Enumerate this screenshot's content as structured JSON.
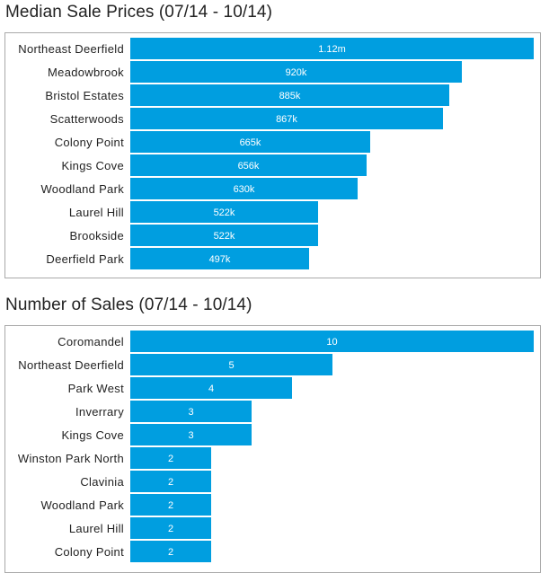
{
  "charts": [
    {
      "title": "Median Sale Prices (07/14 - 10/14)"
    },
    {
      "title": "Number of Sales (07/14 - 10/14)"
    }
  ],
  "bar_color": "#009ee0",
  "chart_data": [
    {
      "type": "bar",
      "orientation": "horizontal",
      "title": "Median Sale Prices (07/14 - 10/14)",
      "categories": [
        "Northeast Deerfield",
        "Meadowbrook",
        "Bristol Estates",
        "Scatterwoods",
        "Colony Point",
        "Kings Cove",
        "Woodland Park",
        "Laurel Hill",
        "Brookside",
        "Deerfield Park"
      ],
      "values": [
        1120000,
        920000,
        885000,
        867000,
        665000,
        656000,
        630000,
        522000,
        522000,
        497000
      ],
      "data_labels": [
        "1.12m",
        "920k",
        "885k",
        "867k",
        "665k",
        "656k",
        "630k",
        "522k",
        "522k",
        "497k"
      ],
      "xlim": [
        0,
        1120000
      ],
      "grid": false
    },
    {
      "type": "bar",
      "orientation": "horizontal",
      "title": "Number of Sales (07/14 - 10/14)",
      "categories": [
        "Coromandel",
        "Northeast Deerfield",
        "Park West",
        "Inverrary",
        "Kings Cove",
        "Winston Park North",
        "Clavinia",
        "Woodland Park",
        "Laurel Hill",
        "Colony Point"
      ],
      "values": [
        10,
        5,
        4,
        3,
        3,
        2,
        2,
        2,
        2,
        2
      ],
      "data_labels": [
        "10",
        "5",
        "4",
        "3",
        "3",
        "2",
        "2",
        "2",
        "2",
        "2"
      ],
      "xlim": [
        0,
        10
      ],
      "grid": false
    }
  ]
}
